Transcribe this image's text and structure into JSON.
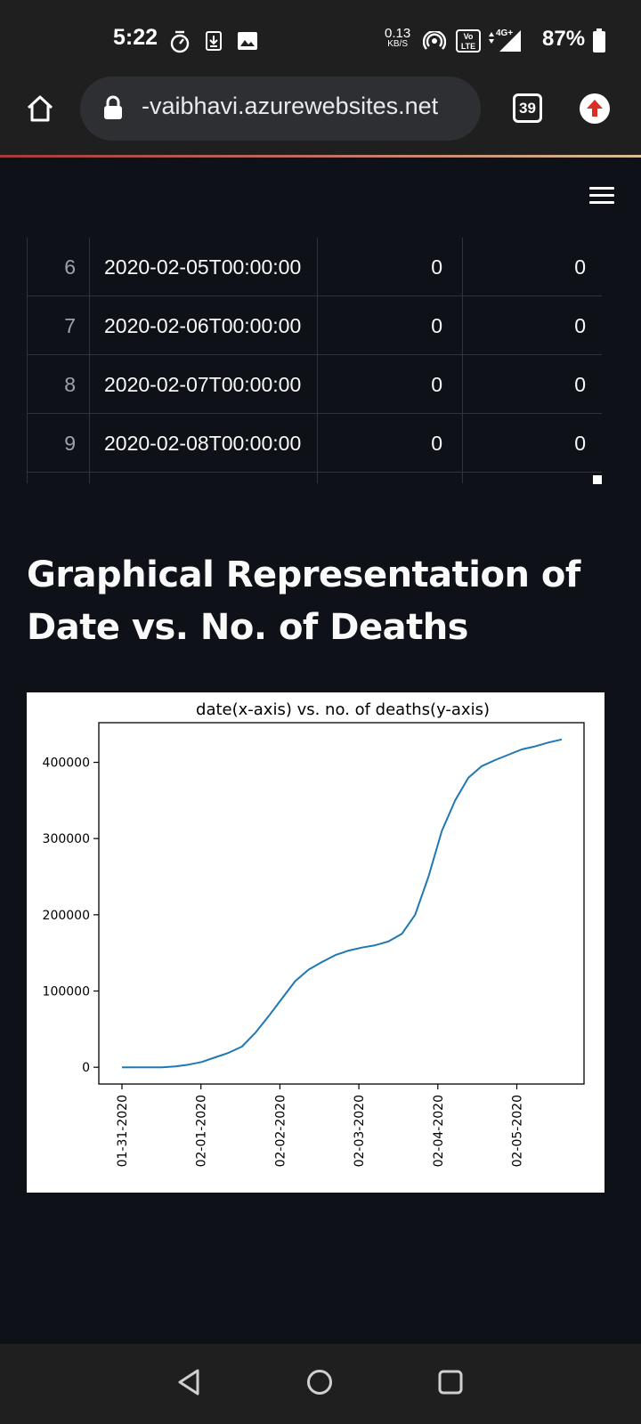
{
  "status_bar": {
    "time": "5:22",
    "net_speed_value": "0.13",
    "net_speed_unit": "KB/S",
    "volte_label": "Vo LTE",
    "network_label": "4G+",
    "battery_percent": "87%"
  },
  "browser": {
    "url": "-vaibhavi.azurewebsites.net",
    "tab_count": "39"
  },
  "table": {
    "rows": [
      {
        "index": "6",
        "date": "2020-02-05T00:00:00",
        "v1": "0",
        "v2": "0"
      },
      {
        "index": "7",
        "date": "2020-02-06T00:00:00",
        "v1": "0",
        "v2": "0"
      },
      {
        "index": "8",
        "date": "2020-02-07T00:00:00",
        "v1": "0",
        "v2": "0"
      },
      {
        "index": "9",
        "date": "2020-02-08T00:00:00",
        "v1": "0",
        "v2": "0"
      }
    ]
  },
  "section": {
    "heading_line1": "Graphical Representation of",
    "heading_line2": "Date vs. No. of Deaths"
  },
  "chart_data": {
    "type": "line",
    "title": "date(x-axis) vs. no. of deaths(y-axis)",
    "xlabel": "",
    "ylabel": "",
    "x_tick_labels": [
      "01-31-2020",
      "02-01-2020",
      "02-02-2020",
      "02-03-2020",
      "02-04-2020",
      "02-05-2020"
    ],
    "y_ticks": [
      0,
      100000,
      200000,
      300000,
      400000
    ],
    "xlim": [
      "01-31-2020",
      "02-06-2020"
    ],
    "ylim": [
      -22000,
      452000
    ],
    "grid": false,
    "series": [
      {
        "color": "#1f77b4",
        "x": [
          "01-31-2020",
          "01-31-2020",
          "02-01-2020",
          "02-01-2020",
          "02-01-2020",
          "02-01-2020",
          "02-02-2020",
          "02-02-2020",
          "02-02-2020",
          "02-02-2020",
          "02-02-2020",
          "02-02-2020",
          "02-03-2020",
          "02-03-2020",
          "02-03-2020",
          "02-03-2020",
          "02-03-2020",
          "02-04-2020",
          "02-04-2020",
          "02-04-2020",
          "02-04-2020",
          "02-04-2020",
          "02-04-2020",
          "02-04-2020",
          "02-04-2020",
          "02-04-2020",
          "02-05-2020",
          "02-05-2020",
          "02-05-2020",
          "02-05-2020",
          "02-05-2020",
          "02-05-2020",
          "02-05-2020",
          "02-05-2020"
        ],
        "values": [
          0,
          0,
          0,
          0,
          1000,
          3500,
          7000,
          13000,
          19000,
          27000,
          45000,
          67000,
          90000,
          113000,
          128000,
          138000,
          147000,
          153000,
          157000,
          160000,
          165000,
          175000,
          200000,
          250000,
          310000,
          350000,
          380000,
          395000,
          403000,
          410000,
          417000,
          421000,
          426000,
          430000
        ]
      }
    ]
  },
  "nav": {
    "back_icon": "back-triangle-icon",
    "home_icon": "home-circle-icon",
    "recents_icon": "recents-square-icon"
  }
}
